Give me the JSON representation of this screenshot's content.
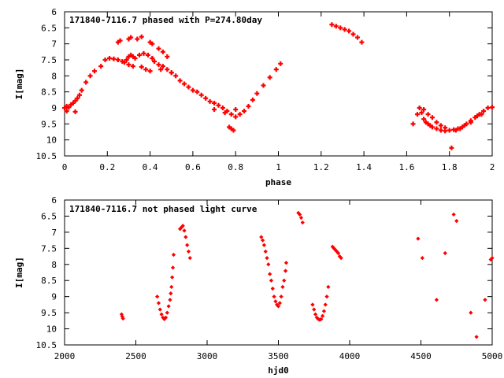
{
  "chart_data": [
    {
      "type": "scatter",
      "title": "171840-7116.7 phased with P=274.80day",
      "xlabel": "phase",
      "ylabel": "I[mag]",
      "xlim": [
        0,
        2
      ],
      "ylim": [
        6,
        10.5
      ],
      "y_reversed": true,
      "grid": false,
      "marker": "plus",
      "color": "#ff0000",
      "x_ticks": [
        0,
        0.2,
        0.4,
        0.6,
        0.8,
        1,
        1.2,
        1.4,
        1.6,
        1.8,
        2
      ],
      "y_ticks": [
        6,
        6.5,
        7,
        7.5,
        8,
        8.5,
        9,
        9.5,
        10,
        10.5
      ],
      "x_tick_labels": [
        "0",
        "0.2",
        "0.4",
        "0.6",
        "0.8",
        "1",
        "1.2",
        "1.4",
        "1.6",
        "1.8",
        "2"
      ],
      "y_tick_labels": [
        "6",
        "6.5",
        "7",
        "7.5",
        "8",
        "8.5",
        "9",
        "9.5",
        "10",
        "10.5"
      ],
      "points": [
        [
          0.0,
          9.0
        ],
        [
          0.01,
          9.1
        ],
        [
          0.01,
          8.95
        ],
        [
          0.02,
          8.98
        ],
        [
          0.03,
          8.9
        ],
        [
          0.04,
          8.85
        ],
        [
          0.05,
          8.78
        ],
        [
          0.05,
          9.12
        ],
        [
          0.06,
          8.7
        ],
        [
          0.07,
          8.6
        ],
        [
          0.08,
          8.45
        ],
        [
          0.1,
          8.2
        ],
        [
          0.12,
          8.0
        ],
        [
          0.14,
          7.85
        ],
        [
          0.17,
          7.7
        ],
        [
          0.19,
          7.5
        ],
        [
          0.21,
          7.45
        ],
        [
          0.23,
          7.47
        ],
        [
          0.25,
          7.5
        ],
        [
          0.27,
          7.55
        ],
        [
          0.28,
          7.58
        ],
        [
          0.29,
          7.5
        ],
        [
          0.3,
          7.4
        ],
        [
          0.31,
          7.35
        ],
        [
          0.32,
          7.4
        ],
        [
          0.33,
          7.45
        ],
        [
          0.35,
          7.35
        ],
        [
          0.37,
          7.3
        ],
        [
          0.39,
          7.35
        ],
        [
          0.41,
          7.45
        ],
        [
          0.42,
          7.55
        ],
        [
          0.44,
          7.65
        ],
        [
          0.46,
          7.7
        ],
        [
          0.48,
          7.8
        ],
        [
          0.5,
          7.9
        ],
        [
          0.52,
          8.0
        ],
        [
          0.54,
          8.15
        ],
        [
          0.56,
          8.25
        ],
        [
          0.58,
          8.35
        ],
        [
          0.6,
          8.45
        ],
        [
          0.62,
          8.5
        ],
        [
          0.64,
          8.6
        ],
        [
          0.66,
          8.7
        ],
        [
          0.68,
          8.8
        ],
        [
          0.7,
          8.85
        ],
        [
          0.72,
          8.92
        ],
        [
          0.74,
          9.0
        ],
        [
          0.76,
          9.1
        ],
        [
          0.78,
          9.2
        ],
        [
          0.8,
          9.28
        ],
        [
          0.82,
          9.2
        ],
        [
          0.84,
          9.1
        ],
        [
          0.86,
          8.95
        ],
        [
          0.88,
          8.75
        ],
        [
          0.9,
          8.55
        ],
        [
          0.93,
          8.3
        ],
        [
          0.96,
          8.05
        ],
        [
          0.99,
          7.8
        ],
        [
          1.01,
          7.62
        ],
        [
          0.25,
          6.95
        ],
        [
          0.26,
          6.9
        ],
        [
          0.3,
          6.85
        ],
        [
          0.31,
          6.8
        ],
        [
          0.34,
          6.85
        ],
        [
          0.36,
          6.78
        ],
        [
          0.4,
          6.95
        ],
        [
          0.41,
          7.0
        ],
        [
          0.44,
          7.15
        ],
        [
          0.46,
          7.25
        ],
        [
          0.48,
          7.4
        ],
        [
          0.3,
          7.65
        ],
        [
          0.32,
          7.7
        ],
        [
          0.36,
          7.72
        ],
        [
          0.38,
          7.8
        ],
        [
          0.4,
          7.85
        ],
        [
          0.45,
          7.8
        ],
        [
          0.5,
          7.9
        ],
        [
          0.7,
          9.05
        ],
        [
          0.75,
          9.15
        ],
        [
          0.78,
          9.65
        ],
        [
          0.79,
          9.7
        ],
        [
          0.77,
          9.6
        ],
        [
          0.8,
          9.05
        ],
        [
          1.25,
          6.4
        ],
        [
          1.27,
          6.45
        ],
        [
          1.29,
          6.5
        ],
        [
          1.31,
          6.55
        ],
        [
          1.33,
          6.6
        ],
        [
          1.35,
          6.7
        ],
        [
          1.37,
          6.8
        ],
        [
          1.39,
          6.95
        ],
        [
          1.63,
          9.5
        ],
        [
          1.65,
          9.2
        ],
        [
          1.66,
          9.0
        ],
        [
          1.67,
          9.15
        ],
        [
          1.68,
          9.35
        ],
        [
          1.69,
          9.45
        ],
        [
          1.7,
          9.5
        ],
        [
          1.71,
          9.55
        ],
        [
          1.72,
          9.6
        ],
        [
          1.74,
          9.65
        ],
        [
          1.76,
          9.7
        ],
        [
          1.78,
          9.72
        ],
        [
          1.8,
          9.7
        ],
        [
          1.82,
          9.68
        ],
        [
          1.84,
          9.65
        ],
        [
          1.86,
          9.6
        ],
        [
          1.88,
          9.5
        ],
        [
          1.9,
          9.4
        ],
        [
          1.92,
          9.3
        ],
        [
          1.94,
          9.2
        ],
        [
          1.96,
          9.1
        ],
        [
          1.98,
          9.0
        ],
        [
          2.0,
          8.98
        ],
        [
          1.68,
          9.05
        ],
        [
          1.7,
          9.2
        ],
        [
          1.72,
          9.3
        ],
        [
          1.74,
          9.45
        ],
        [
          1.76,
          9.55
        ],
        [
          1.78,
          9.62
        ],
        [
          1.81,
          10.25
        ],
        [
          1.83,
          9.7
        ],
        [
          1.85,
          9.65
        ],
        [
          1.87,
          9.55
        ],
        [
          1.9,
          9.45
        ],
        [
          1.93,
          9.25
        ],
        [
          1.95,
          9.2
        ]
      ]
    },
    {
      "type": "scatter",
      "title": "171840-7116.7 not phased light curve",
      "xlabel": "hjd0",
      "ylabel": "I[mag]",
      "xlim": [
        2000,
        5000
      ],
      "ylim": [
        6,
        10.5
      ],
      "y_reversed": true,
      "grid": false,
      "marker": "diamond",
      "color": "#ff0000",
      "x_ticks": [
        2000,
        2500,
        3000,
        3500,
        4000,
        4500,
        5000
      ],
      "y_ticks": [
        6,
        6.5,
        7,
        7.5,
        8,
        8.5,
        9,
        9.5,
        10,
        10.5
      ],
      "x_tick_labels": [
        "2000",
        "2500",
        "3000",
        "3500",
        "4000",
        "4500",
        "5000"
      ],
      "y_tick_labels": [
        "6",
        "6.5",
        "7",
        "7.5",
        "8",
        "8.5",
        "9",
        "9.5",
        "10",
        "10.5"
      ],
      "points": [
        [
          2400,
          9.55
        ],
        [
          2405,
          9.62
        ],
        [
          2410,
          9.68
        ],
        [
          2650,
          9.0
        ],
        [
          2660,
          9.2
        ],
        [
          2670,
          9.4
        ],
        [
          2680,
          9.55
        ],
        [
          2690,
          9.65
        ],
        [
          2700,
          9.7
        ],
        [
          2710,
          9.65
        ],
        [
          2720,
          9.5
        ],
        [
          2730,
          9.3
        ],
        [
          2740,
          9.1
        ],
        [
          2745,
          8.9
        ],
        [
          2750,
          8.7
        ],
        [
          2755,
          8.4
        ],
        [
          2760,
          8.1
        ],
        [
          2765,
          7.7
        ],
        [
          2810,
          6.9
        ],
        [
          2820,
          6.85
        ],
        [
          2830,
          6.8
        ],
        [
          2840,
          6.95
        ],
        [
          2850,
          7.15
        ],
        [
          2860,
          7.4
        ],
        [
          2870,
          7.6
        ],
        [
          2880,
          7.8
        ],
        [
          3380,
          7.15
        ],
        [
          3390,
          7.25
        ],
        [
          3400,
          7.4
        ],
        [
          3410,
          7.6
        ],
        [
          3420,
          7.8
        ],
        [
          3430,
          8.0
        ],
        [
          3440,
          8.3
        ],
        [
          3450,
          8.5
        ],
        [
          3460,
          8.75
        ],
        [
          3470,
          9.0
        ],
        [
          3480,
          9.15
        ],
        [
          3490,
          9.25
        ],
        [
          3500,
          9.3
        ],
        [
          3510,
          9.2
        ],
        [
          3520,
          9.0
        ],
        [
          3530,
          8.7
        ],
        [
          3540,
          8.5
        ],
        [
          3550,
          8.2
        ],
        [
          3555,
          7.95
        ],
        [
          3640,
          6.4
        ],
        [
          3650,
          6.45
        ],
        [
          3660,
          6.55
        ],
        [
          3670,
          6.7
        ],
        [
          3740,
          9.25
        ],
        [
          3750,
          9.4
        ],
        [
          3760,
          9.55
        ],
        [
          3770,
          9.65
        ],
        [
          3780,
          9.7
        ],
        [
          3790,
          9.72
        ],
        [
          3800,
          9.7
        ],
        [
          3810,
          9.6
        ],
        [
          3820,
          9.45
        ],
        [
          3830,
          9.25
        ],
        [
          3840,
          9.0
        ],
        [
          3850,
          8.7
        ],
        [
          3880,
          7.45
        ],
        [
          3890,
          7.5
        ],
        [
          3900,
          7.55
        ],
        [
          3910,
          7.6
        ],
        [
          3920,
          7.65
        ],
        [
          3930,
          7.75
        ],
        [
          3940,
          7.8
        ],
        [
          4480,
          7.2
        ],
        [
          4510,
          7.8
        ],
        [
          4610,
          9.1
        ],
        [
          4670,
          7.65
        ],
        [
          4730,
          6.45
        ],
        [
          4750,
          6.65
        ],
        [
          4850,
          9.5
        ],
        [
          4890,
          10.25
        ],
        [
          4950,
          9.1
        ],
        [
          4990,
          7.85
        ],
        [
          5000,
          7.8
        ]
      ]
    }
  ]
}
